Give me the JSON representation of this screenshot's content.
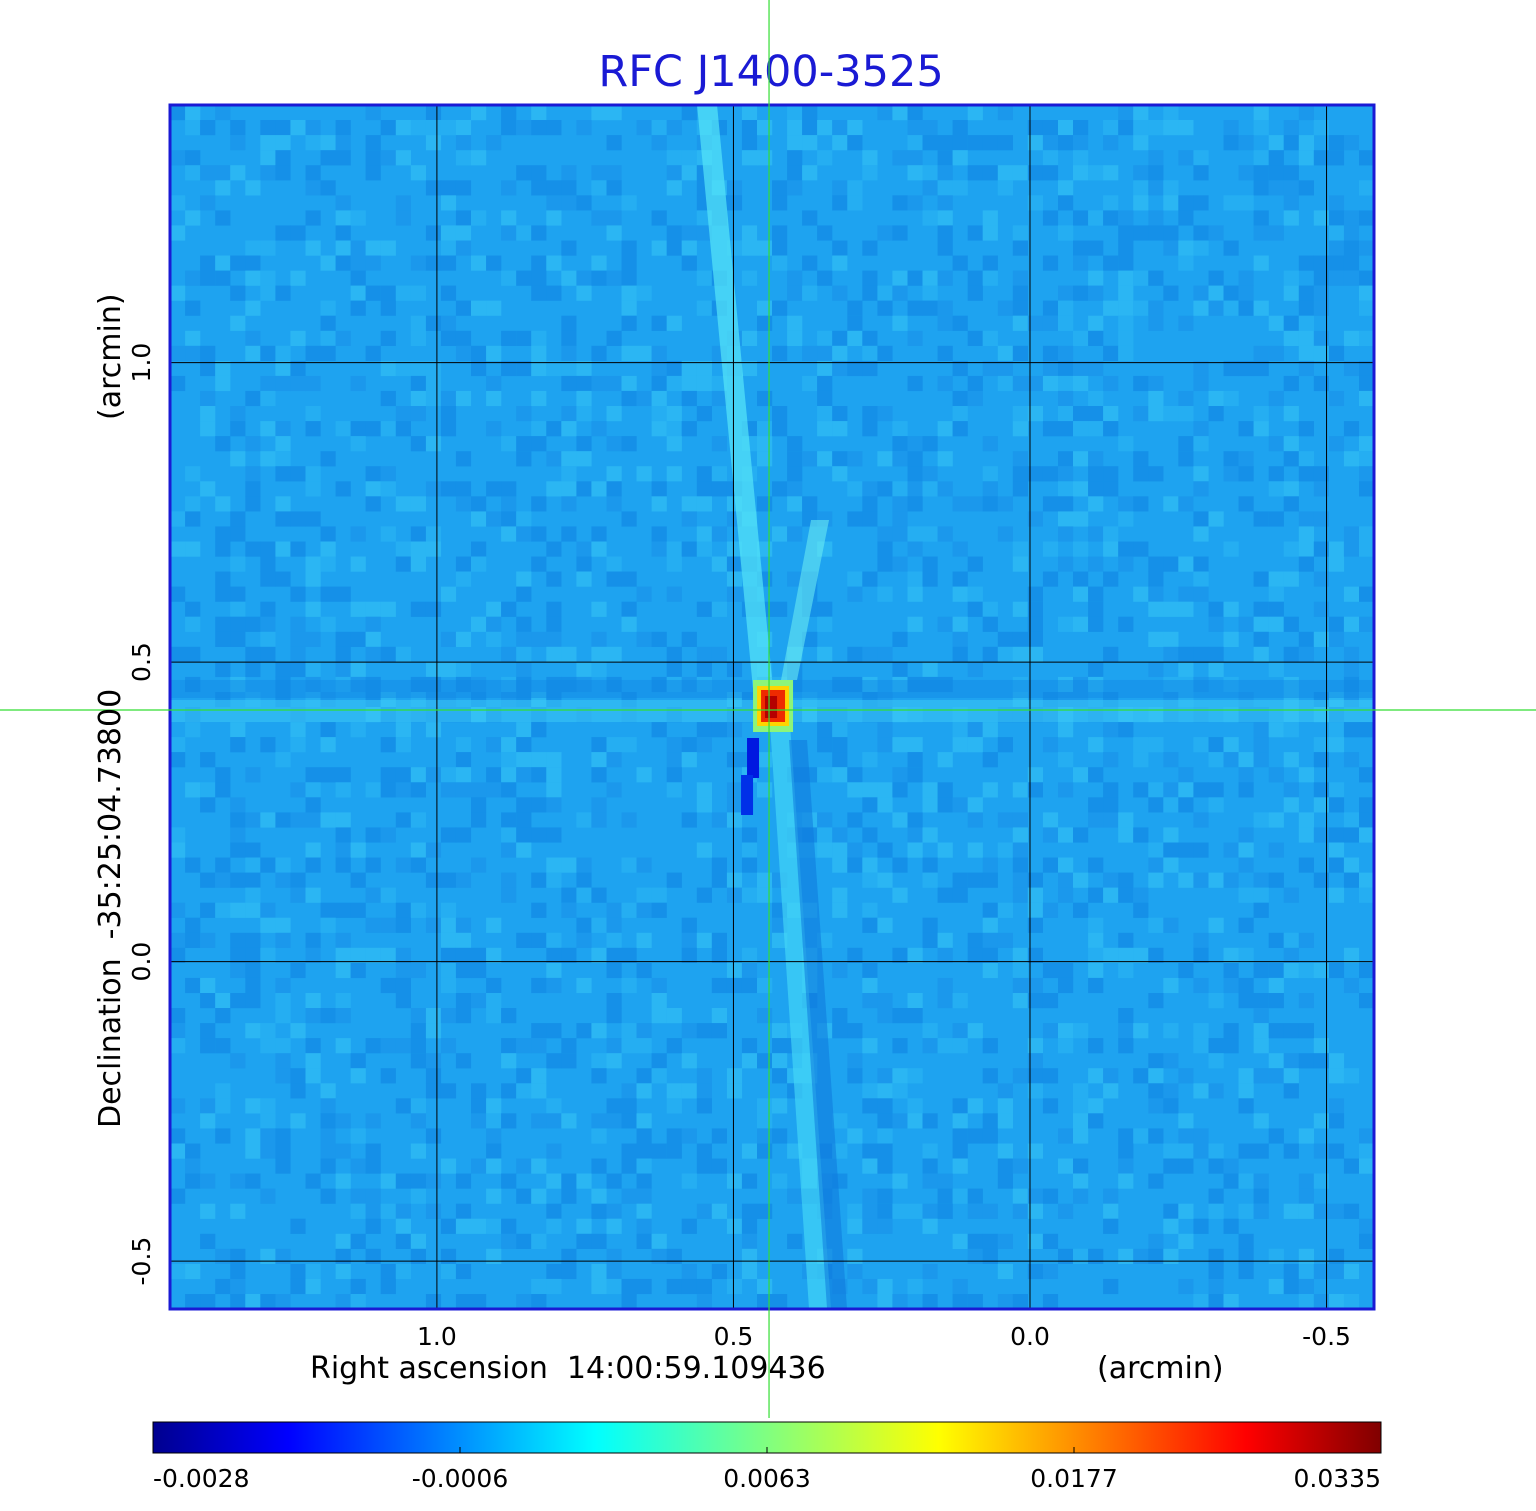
{
  "chart_data": {
    "type": "heatmap",
    "title": "RFC J1400-3525",
    "xlabel": "Right ascension  14:00:59.109436",
    "xunit": "(arcmin)",
    "ylabel": "Declination  -35:25:04.73800",
    "yunit": "(arcmin)",
    "xlim": [
      1.45,
      -0.58
    ],
    "ylim": [
      -0.58,
      1.43
    ],
    "x_ticks": [
      1.0,
      0.5,
      0.0,
      -0.5
    ],
    "x_tick_labels": [
      "1.0",
      "0.5",
      "0.0",
      "-0.5"
    ],
    "y_ticks": [
      -0.5,
      0.0,
      0.5,
      1.0
    ],
    "y_tick_labels": [
      "-0.5",
      "0.0",
      "0.5",
      "1.0"
    ],
    "grid": true,
    "crosshair": {
      "x": 0.44,
      "y": 0.42,
      "color": "#33dd33"
    },
    "peak": {
      "x": 0.44,
      "y": 0.42,
      "value": 0.0335
    },
    "colormap": "jet",
    "colorbar": {
      "tick_labels": [
        "-0.0028",
        "-0.0006",
        "0.0063",
        "0.0177",
        "0.0335"
      ],
      "min": -0.0028,
      "max": 0.0335
    },
    "colors": {
      "title": "#1a1ad4",
      "frame": "#1a1ad4",
      "background_level": "#1ea3f0",
      "grid": "#000000"
    }
  }
}
